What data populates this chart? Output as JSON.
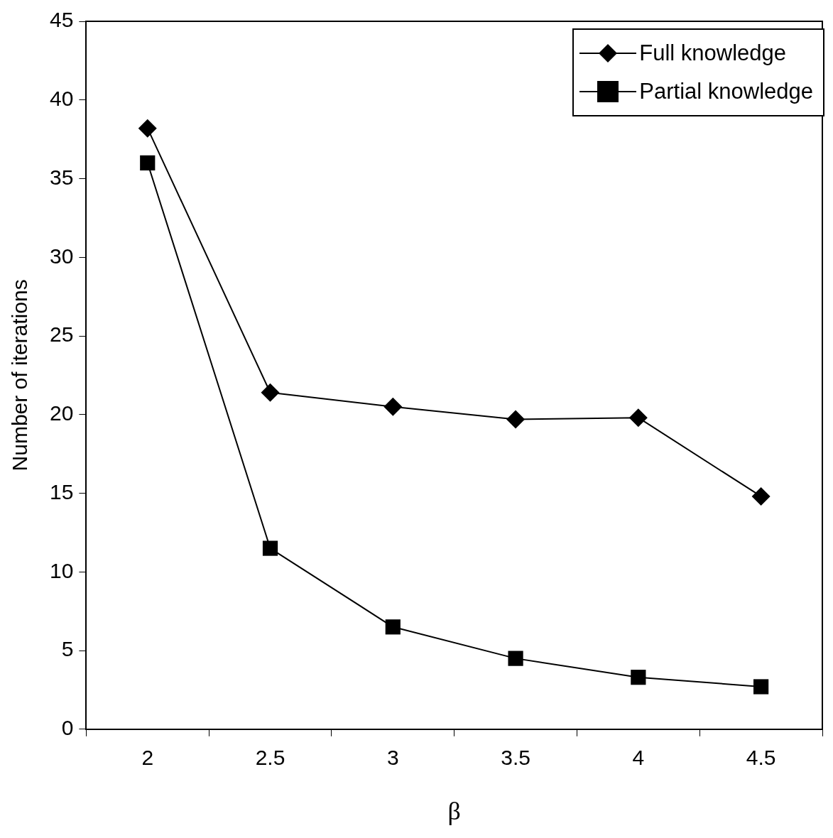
{
  "chart_data": {
    "type": "line",
    "xlabel": "β",
    "ylabel": "Number of iterations",
    "categories": [
      "2",
      "2.5",
      "3",
      "3.5",
      "4",
      "4.5"
    ],
    "series": [
      {
        "name": "Full knowledge",
        "color": "#000000",
        "marker": "diamond",
        "values": [
          38.2,
          21.4,
          20.5,
          19.7,
          19.8,
          14.8
        ]
      },
      {
        "name": "Partial knowledge",
        "color": "#000000",
        "marker": "square",
        "values": [
          36.0,
          11.5,
          6.5,
          4.5,
          3.3,
          2.7
        ]
      }
    ],
    "ylim": [
      0,
      45
    ],
    "yticks": [
      0,
      5,
      10,
      15,
      20,
      25,
      30,
      35,
      40,
      45
    ],
    "grid": false,
    "legend": "top right",
    "line_style": "solid"
  }
}
